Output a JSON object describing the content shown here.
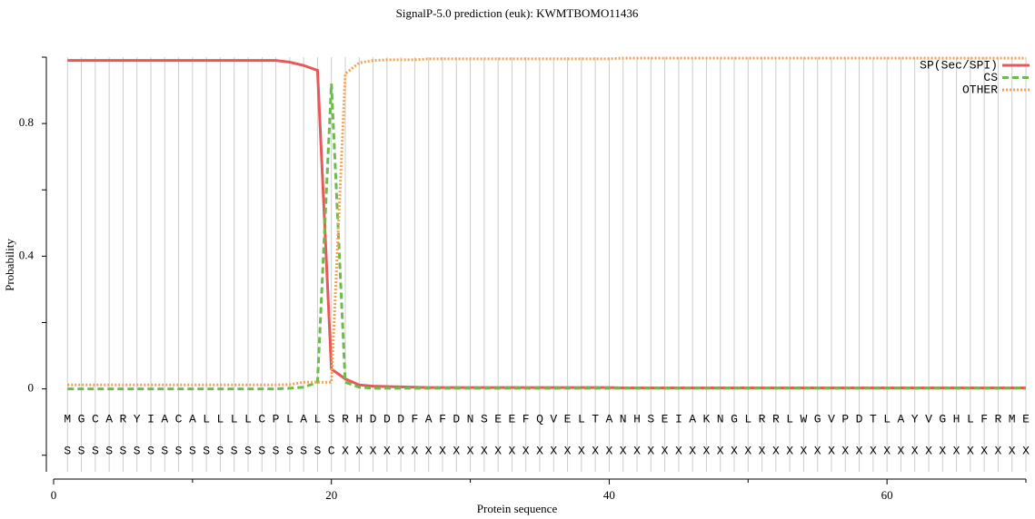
{
  "chart_data": {
    "type": "line",
    "title": "SignalP-5.0 prediction (euk):  KWMTBOMO11436",
    "x_label": "Protein sequence",
    "y_label": "Probability",
    "x": [
      1,
      2,
      3,
      4,
      5,
      6,
      7,
      8,
      9,
      10,
      11,
      12,
      13,
      14,
      15,
      16,
      17,
      18,
      19,
      20,
      21,
      22,
      23,
      24,
      25,
      26,
      27,
      28,
      29,
      30,
      31,
      32,
      33,
      34,
      35,
      36,
      37,
      38,
      39,
      40,
      41,
      42,
      43,
      44,
      45,
      46,
      47,
      48,
      49,
      50,
      51,
      52,
      53,
      54,
      55,
      56,
      57,
      58,
      59,
      60,
      61,
      62,
      63,
      64,
      65,
      66,
      67,
      68,
      69,
      70
    ],
    "sequence": [
      "M",
      "G",
      "C",
      "A",
      "R",
      "Y",
      "I",
      "A",
      "C",
      "A",
      "L",
      "L",
      "L",
      "L",
      "C",
      "P",
      "L",
      "A",
      "L",
      "S",
      "R",
      "H",
      "D",
      "D",
      "D",
      "F",
      "A",
      "F",
      "D",
      "N",
      "S",
      "E",
      "E",
      "F",
      "Q",
      "V",
      "E",
      "L",
      "T",
      "A",
      "N",
      "H",
      "S",
      "E",
      "I",
      "A",
      "K",
      "N",
      "G",
      "L",
      "R",
      "R",
      "L",
      "W",
      "G",
      "V",
      "P",
      "D",
      "T",
      "L",
      "A",
      "Y",
      "V",
      "G",
      "H",
      "L",
      "F",
      "R",
      "M",
      "E"
    ],
    "labels": [
      "S",
      "S",
      "S",
      "S",
      "S",
      "S",
      "S",
      "S",
      "S",
      "S",
      "S",
      "S",
      "S",
      "S",
      "S",
      "S",
      "S",
      "S",
      "S",
      "C",
      "X",
      "X",
      "X",
      "X",
      "X",
      "X",
      "X",
      "X",
      "X",
      "X",
      "X",
      "X",
      "X",
      "X",
      "X",
      "X",
      "X",
      "X",
      "X",
      "X",
      "X",
      "X",
      "X",
      "X",
      "X",
      "X",
      "X",
      "X",
      "X",
      "X",
      "X",
      "X",
      "X",
      "X",
      "X",
      "X",
      "X",
      "X",
      "X",
      "X",
      "X",
      "X",
      "X",
      "X",
      "X",
      "X",
      "X",
      "X",
      "X",
      "X"
    ],
    "series": [
      {
        "name": "SP(Sec/SPI)",
        "color": "#e8585a",
        "dash": "solid",
        "values": [
          0.99,
          0.99,
          0.99,
          0.99,
          0.99,
          0.99,
          0.99,
          0.99,
          0.99,
          0.99,
          0.99,
          0.99,
          0.99,
          0.99,
          0.99,
          0.99,
          0.985,
          0.975,
          0.96,
          0.06,
          0.03,
          0.012,
          0.008,
          0.007,
          0.006,
          0.005,
          0.004,
          0.004,
          0.004,
          0.004,
          0.004,
          0.004,
          0.004,
          0.004,
          0.004,
          0.004,
          0.004,
          0.004,
          0.004,
          0.004,
          0.003,
          0.003,
          0.003,
          0.003,
          0.003,
          0.003,
          0.003,
          0.003,
          0.003,
          0.003,
          0.003,
          0.003,
          0.003,
          0.003,
          0.003,
          0.003,
          0.003,
          0.003,
          0.003,
          0.003,
          0.003,
          0.003,
          0.003,
          0.003,
          0.003,
          0.003,
          0.003,
          0.003,
          0.003,
          0.003
        ]
      },
      {
        "name": "CS",
        "color": "#6dbb4c",
        "dash": "dashed",
        "values": [
          0,
          0,
          0,
          0,
          0,
          0,
          0,
          0,
          0,
          0,
          0,
          0,
          0,
          0,
          0,
          0,
          0.002,
          0.005,
          0.02,
          0.92,
          0.02,
          0.005,
          0.002,
          0.002,
          0.002,
          0.002,
          0.002,
          0.002,
          0.002,
          0.002,
          0.002,
          0.002,
          0.002,
          0.002,
          0.002,
          0.002,
          0.002,
          0.002,
          0.002,
          0.002,
          0.002,
          0.002,
          0.002,
          0.002,
          0.002,
          0.002,
          0.002,
          0.002,
          0.002,
          0.002,
          0.002,
          0.002,
          0.002,
          0.002,
          0.002,
          0.002,
          0.002,
          0.002,
          0.002,
          0.002,
          0.002,
          0.002,
          0.002,
          0.002,
          0.002,
          0.002,
          0.002,
          0.002,
          0.002,
          0.002
        ]
      },
      {
        "name": "OTHER",
        "color": "#f4a352",
        "dash": "dotted",
        "values": [
          0.012,
          0.012,
          0.012,
          0.012,
          0.012,
          0.012,
          0.012,
          0.012,
          0.012,
          0.012,
          0.012,
          0.012,
          0.012,
          0.012,
          0.012,
          0.012,
          0.013,
          0.02,
          0.02,
          0.02,
          0.95,
          0.983,
          0.99,
          0.992,
          0.992,
          0.992,
          0.995,
          0.995,
          0.995,
          0.995,
          0.995,
          0.995,
          0.995,
          0.995,
          0.995,
          0.995,
          0.995,
          0.995,
          0.995,
          0.995,
          0.997,
          0.997,
          0.997,
          0.997,
          0.997,
          0.997,
          0.997,
          0.997,
          0.997,
          0.997,
          0.997,
          0.997,
          0.997,
          0.997,
          0.997,
          0.997,
          0.997,
          0.997,
          0.997,
          0.997,
          0.997,
          0.997,
          0.997,
          0.997,
          0.997,
          0.997,
          0.997,
          0.997,
          0.997,
          0.997
        ]
      }
    ],
    "xlim": [
      0,
      70
    ],
    "xticks": [
      0,
      20,
      40,
      60
    ],
    "xminorticks": [
      10,
      30,
      50,
      70
    ],
    "ylim": [
      -0.25,
      1.0
    ],
    "yticks": [
      0,
      0.4,
      0.8
    ],
    "yminorticks": [
      -0.2,
      0.2,
      0.6,
      1.0
    ],
    "grid": true,
    "legend": "upper right"
  }
}
